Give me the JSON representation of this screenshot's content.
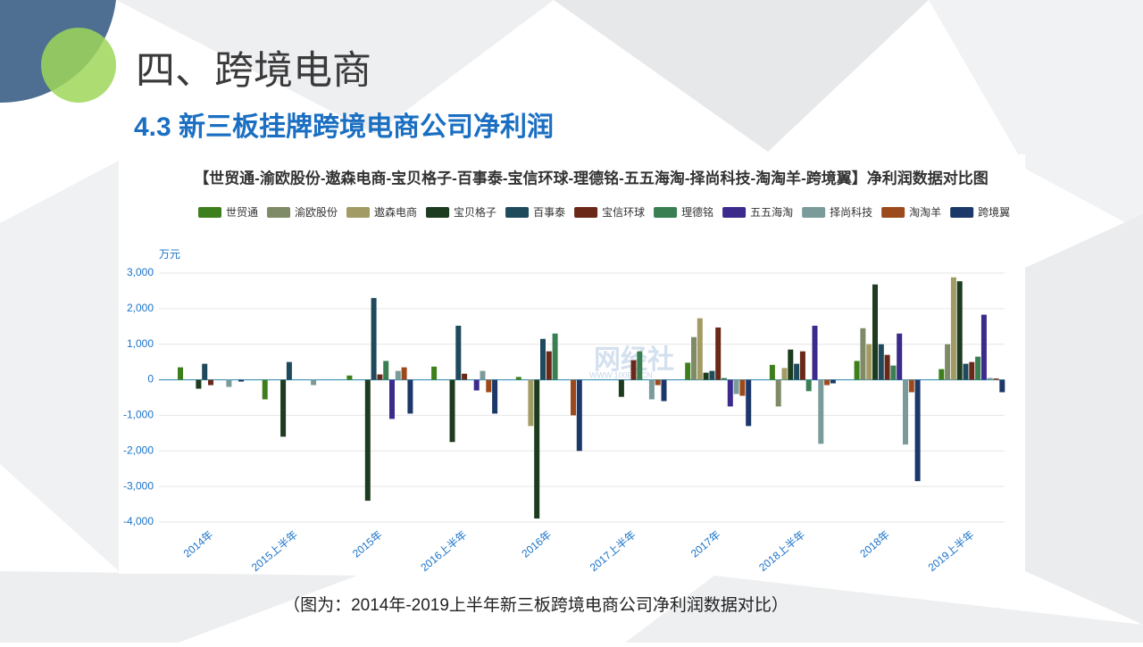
{
  "slide": {
    "title": "四、跨境电商",
    "subtitle": "4.3 新三板挂牌跨境电商公司净利润",
    "caption": "（图为：2014年-2019上半年新三板跨境电商公司净利润数据对比）",
    "watermark": "网经社",
    "watermark_url": "WWW.100EC.CN"
  },
  "chart_data": {
    "type": "bar",
    "title": "【世贸通-渝欧股份-遨森电商-宝贝格子-百事泰-宝信环球-理德铭-五五海淘-择尚科技-淘淘羊-跨境翼】净利润数据对比图",
    "y_label": "万元",
    "categories": [
      "2014年",
      "2015上半年",
      "2015年",
      "2016上半年",
      "2016年",
      "2017上半年",
      "2017年",
      "2018上半年",
      "2018年",
      "2019上半年"
    ],
    "series": [
      {
        "name": "世贸通",
        "color": "#3d7f1c",
        "values": [
          350,
          -550,
          120,
          370,
          80,
          null,
          480,
          420,
          530,
          300
        ]
      },
      {
        "name": "渝欧股份",
        "color": "#7f8a66",
        "values": [
          null,
          null,
          null,
          null,
          null,
          null,
          1200,
          -750,
          1450,
          1000
        ]
      },
      {
        "name": "遨森电商",
        "color": "#a29b63",
        "values": [
          null,
          null,
          null,
          null,
          -1300,
          null,
          1730,
          330,
          1000,
          2880
        ]
      },
      {
        "name": "宝贝格子",
        "color": "#1d3b1e",
        "values": [
          -250,
          -1600,
          -3400,
          -1750,
          -3900,
          -480,
          200,
          850,
          2680,
          2770
        ]
      },
      {
        "name": "百事泰",
        "color": "#1f4a5c",
        "values": [
          450,
          500,
          2300,
          1520,
          1150,
          null,
          250,
          450,
          1000,
          450
        ]
      },
      {
        "name": "宝信环球",
        "color": "#6a2818",
        "values": [
          -150,
          null,
          150,
          170,
          800,
          550,
          1470,
          800,
          700,
          500
        ]
      },
      {
        "name": "理德铭",
        "color": "#3a7f52",
        "values": [
          null,
          null,
          530,
          null,
          1300,
          800,
          50,
          -320,
          400,
          650
        ]
      },
      {
        "name": "五五海淘",
        "color": "#3c2a8c",
        "values": [
          null,
          null,
          -1100,
          -300,
          null,
          null,
          -750,
          1520,
          1300,
          1830
        ]
      },
      {
        "name": "择尚科技",
        "color": "#7b9b9b",
        "values": [
          -200,
          -150,
          250,
          250,
          null,
          -550,
          -400,
          -1800,
          -1820,
          50
        ]
      },
      {
        "name": "淘淘羊",
        "color": "#9c4a1c",
        "values": [
          null,
          null,
          350,
          -350,
          -1000,
          -150,
          -450,
          -150,
          -350,
          40
        ]
      },
      {
        "name": "跨境翼",
        "color": "#1c3868",
        "values": [
          -50,
          null,
          -950,
          -950,
          -2000,
          -600,
          -1300,
          -100,
          -2850,
          -350
        ]
      }
    ],
    "ylim": [
      -4000,
      3000
    ],
    "yticks": [
      {
        "value": -4000,
        "label": "-4,000"
      },
      {
        "value": -3000,
        "label": "-3,000"
      },
      {
        "value": -2000,
        "label": "-2,000"
      },
      {
        "value": -1000,
        "label": "-1,000"
      },
      0,
      {
        "value": 1000,
        "label": "1,000"
      },
      {
        "value": 2000,
        "label": "2,000"
      },
      {
        "value": 3000,
        "label": "3,000"
      }
    ],
    "grid": true
  }
}
